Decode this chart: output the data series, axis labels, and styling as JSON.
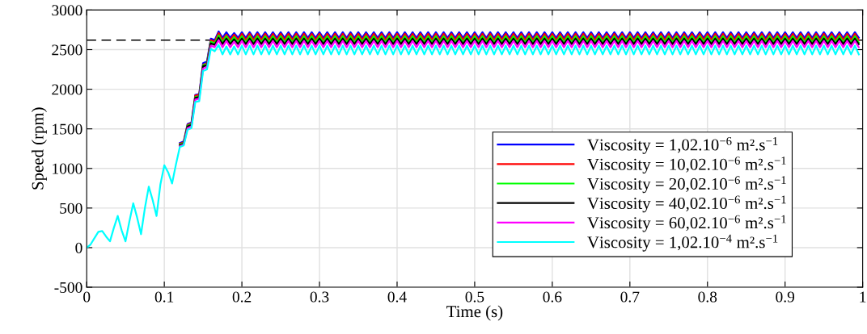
{
  "chart_data": {
    "type": "line",
    "xlabel": "Time (s)",
    "ylabel": "Speed (rpm)",
    "xlim": [
      0,
      1
    ],
    "xticks": [
      0,
      0.1,
      0.2,
      0.3,
      0.4,
      0.5,
      0.6,
      0.7,
      0.8,
      0.9,
      1
    ],
    "ylim": [
      -500,
      3000
    ],
    "yticks": [
      -500,
      0,
      500,
      1000,
      1500,
      2000,
      2500,
      3000
    ],
    "grid": true,
    "legend": "bottom right",
    "line_style": "solid",
    "marker": "none",
    "ref_lines": [
      {
        "axis": "y",
        "value": 2620,
        "color": "#000000",
        "line_style": "dashed"
      }
    ],
    "x": [
      0,
      0.005,
      0.01,
      0.015,
      0.02,
      0.025,
      0.03,
      0.035,
      0.04,
      0.045,
      0.05,
      0.055,
      0.06,
      0.065,
      0.07,
      0.075,
      0.08,
      0.085,
      0.09,
      0.095,
      0.1,
      0.105,
      0.11,
      0.115,
      0.12,
      0.125,
      0.13,
      0.135,
      0.14,
      0.145,
      0.15,
      0.155,
      0.16,
      0.165,
      0.17,
      0.175,
      0.18,
      0.185,
      0.19,
      0.195,
      0.2,
      0.205,
      0.21,
      0.215,
      0.22,
      0.225,
      0.23,
      0.235,
      0.24,
      0.245,
      0.25,
      0.255,
      0.26,
      0.265,
      0.27,
      0.275,
      0.28,
      0.285,
      0.29,
      0.295,
      0.3,
      0.305,
      0.31,
      0.315,
      0.32,
      0.325,
      0.33,
      0.335,
      0.34,
      0.345,
      0.35,
      0.355,
      0.36,
      0.365,
      0.37,
      0.375,
      0.38,
      0.385,
      0.39,
      0.395,
      0.4,
      0.405,
      0.41,
      0.415,
      0.42,
      0.425,
      0.43,
      0.435,
      0.44,
      0.445,
      0.45,
      0.455,
      0.46,
      0.465,
      0.47,
      0.475,
      0.48,
      0.485,
      0.49,
      0.495,
      0.5,
      0.505,
      0.51,
      0.515,
      0.52,
      0.525,
      0.53,
      0.535,
      0.54,
      0.545,
      0.55,
      0.555,
      0.56,
      0.565,
      0.57,
      0.575,
      0.58,
      0.585,
      0.59,
      0.595,
      0.6,
      0.605,
      0.61,
      0.615,
      0.62,
      0.625,
      0.63,
      0.635,
      0.64,
      0.645,
      0.65,
      0.655,
      0.66,
      0.665,
      0.67,
      0.675,
      0.68,
      0.685,
      0.69,
      0.695,
      0.7,
      0.705,
      0.71,
      0.715,
      0.72,
      0.725,
      0.73,
      0.735,
      0.74,
      0.745,
      0.75,
      0.755,
      0.76,
      0.765,
      0.77,
      0.775,
      0.78,
      0.785,
      0.79,
      0.795,
      0.8,
      0.805,
      0.81,
      0.815,
      0.82,
      0.825,
      0.83,
      0.835,
      0.84,
      0.845,
      0.85,
      0.855,
      0.86,
      0.865,
      0.87,
      0.875,
      0.88,
      0.885,
      0.89,
      0.895,
      0.9,
      0.905,
      0.91,
      0.915,
      0.92,
      0.925,
      0.93,
      0.935,
      0.94,
      0.945,
      0.95,
      0.955,
      0.96,
      0.965,
      0.97,
      0.975,
      0.98,
      0.985,
      0.99,
      0.995
    ],
    "series": [
      {
        "name": "Viscosity = 1,02.10$^{−6}$ m².s$^{−1}$",
        "color": "#0000ff",
        "values": [
          null,
          null,
          null,
          null,
          null,
          null,
          null,
          null,
          null,
          null,
          null,
          null,
          null,
          null,
          null,
          null,
          null,
          null,
          null,
          null,
          null,
          null,
          null,
          null,
          1320,
          1340,
          1560,
          1580,
          1930,
          1940,
          2330,
          2350,
          2640,
          2620,
          2730,
          2650,
          2720,
          2650,
          2710,
          2650,
          2720,
          2650,
          2720,
          2650,
          2720,
          2650,
          2720,
          2650,
          2720,
          2650,
          2720,
          2650,
          2720,
          2650,
          2720,
          2650,
          2720,
          2650,
          2720,
          2650,
          2720,
          2650,
          2720,
          2650,
          2720,
          2650,
          2720,
          2650,
          2720,
          2650,
          2720,
          2650,
          2720,
          2650,
          2720,
          2650,
          2720,
          2650,
          2720,
          2650,
          2720,
          2650,
          2720,
          2650,
          2720,
          2650,
          2720,
          2650,
          2720,
          2650,
          2720,
          2650,
          2720,
          2650,
          2720,
          2650,
          2720,
          2650,
          2720,
          2650,
          2720,
          2650,
          2720,
          2650,
          2720,
          2650,
          2720,
          2650,
          2720,
          2650,
          2720,
          2650,
          2720,
          2650,
          2720,
          2650,
          2720,
          2650,
          2720,
          2650,
          2720,
          2650,
          2720,
          2650,
          2720,
          2650,
          2720,
          2650,
          2720,
          2650,
          2720,
          2650,
          2720,
          2650,
          2720,
          2650,
          2720,
          2650,
          2720,
          2650,
          2720,
          2650,
          2720,
          2650,
          2720,
          2650,
          2720,
          2650,
          2720,
          2650,
          2720,
          2650,
          2720,
          2650,
          2720,
          2650,
          2720,
          2650,
          2720,
          2650,
          2720,
          2650,
          2720,
          2650,
          2720,
          2650,
          2720,
          2650,
          2720,
          2650,
          2720,
          2650,
          2720,
          2650,
          2720,
          2650,
          2720,
          2650,
          2720,
          2650,
          2720,
          2650,
          2720,
          2650,
          2720,
          2650,
          2720,
          2650,
          2720,
          2650,
          2720,
          2650,
          2720,
          2650,
          2720,
          2650,
          2720,
          2650,
          2720,
          2650
        ]
      },
      {
        "name": "Viscosity = 10,02.10$^{−6}$ m².s$^{−1}$",
        "color": "#ff0000",
        "values": [
          null,
          null,
          null,
          null,
          null,
          null,
          null,
          null,
          null,
          null,
          null,
          null,
          null,
          null,
          null,
          null,
          null,
          null,
          null,
          null,
          null,
          null,
          null,
          null,
          1310,
          1330,
          1550,
          1570,
          1920,
          1930,
          2310,
          2330,
          2620,
          2600,
          2710,
          2620,
          2690,
          2620,
          2690,
          2620,
          2700,
          2620,
          2700,
          2620,
          2700,
          2620,
          2700,
          2620,
          2700,
          2620,
          2700,
          2620,
          2700,
          2620,
          2700,
          2620,
          2700,
          2620,
          2700,
          2620,
          2700,
          2620,
          2700,
          2620,
          2700,
          2620,
          2700,
          2620,
          2700,
          2620,
          2700,
          2620,
          2700,
          2620,
          2700,
          2620,
          2700,
          2620,
          2700,
          2620,
          2700,
          2620,
          2700,
          2620,
          2700,
          2620,
          2700,
          2620,
          2700,
          2620,
          2700,
          2620,
          2700,
          2620,
          2700,
          2620,
          2700,
          2620,
          2700,
          2620,
          2700,
          2620,
          2700,
          2620,
          2700,
          2620,
          2700,
          2620,
          2700,
          2620,
          2700,
          2620,
          2700,
          2620,
          2700,
          2620,
          2700,
          2620,
          2700,
          2620,
          2700,
          2620,
          2700,
          2620,
          2700,
          2620,
          2700,
          2620,
          2700,
          2620,
          2700,
          2620,
          2700,
          2620,
          2700,
          2620,
          2700,
          2620,
          2700,
          2620,
          2700,
          2620,
          2700,
          2620,
          2700,
          2620,
          2700,
          2620,
          2700,
          2620,
          2700,
          2620,
          2700,
          2620,
          2700,
          2620,
          2700,
          2620,
          2700,
          2620,
          2700,
          2620,
          2700,
          2620,
          2700,
          2620,
          2700,
          2620,
          2700,
          2620,
          2700,
          2620,
          2700,
          2620,
          2700,
          2620,
          2700,
          2620,
          2700,
          2620,
          2700,
          2620,
          2700,
          2620,
          2700,
          2620,
          2700,
          2620,
          2700,
          2620,
          2700,
          2620,
          2700,
          2620,
          2700,
          2620,
          2700,
          2620,
          2700,
          2620
        ]
      },
      {
        "name": "Viscosity = 20,02.10$^{−6}$ m².s$^{−1}$",
        "color": "#00ff00",
        "values": [
          null,
          null,
          null,
          null,
          null,
          null,
          null,
          null,
          null,
          null,
          null,
          null,
          null,
          null,
          null,
          null,
          null,
          null,
          null,
          null,
          null,
          null,
          null,
          null,
          1300,
          1320,
          1540,
          1560,
          1900,
          1910,
          2300,
          2320,
          2600,
          2580,
          2680,
          2590,
          2670,
          2590,
          2660,
          2590,
          2670,
          2590,
          2670,
          2590,
          2670,
          2590,
          2670,
          2590,
          2670,
          2590,
          2670,
          2590,
          2670,
          2590,
          2670,
          2590,
          2670,
          2590,
          2670,
          2590,
          2670,
          2590,
          2670,
          2590,
          2670,
          2590,
          2670,
          2590,
          2670,
          2590,
          2670,
          2590,
          2670,
          2590,
          2670,
          2590,
          2670,
          2590,
          2670,
          2590,
          2670,
          2590,
          2670,
          2590,
          2670,
          2590,
          2670,
          2590,
          2670,
          2590,
          2670,
          2590,
          2670,
          2590,
          2670,
          2590,
          2670,
          2590,
          2670,
          2590,
          2670,
          2590,
          2670,
          2590,
          2670,
          2590,
          2670,
          2590,
          2670,
          2590,
          2670,
          2590,
          2670,
          2590,
          2670,
          2590,
          2670,
          2590,
          2670,
          2590,
          2670,
          2590,
          2670,
          2590,
          2670,
          2590,
          2670,
          2590,
          2670,
          2590,
          2670,
          2590,
          2670,
          2590,
          2670,
          2590,
          2670,
          2590,
          2670,
          2590,
          2670,
          2590,
          2670,
          2590,
          2670,
          2590,
          2670,
          2590,
          2670,
          2590,
          2670,
          2590,
          2670,
          2590,
          2670,
          2590,
          2670,
          2590,
          2670,
          2590,
          2670,
          2590,
          2670,
          2590,
          2670,
          2590,
          2670,
          2590,
          2670,
          2590,
          2670,
          2590,
          2670,
          2590,
          2670,
          2590,
          2670,
          2590,
          2670,
          2590,
          2670,
          2590,
          2670,
          2590,
          2670,
          2590,
          2670,
          2590,
          2670,
          2590,
          2670,
          2590,
          2670,
          2590,
          2670,
          2590,
          2670,
          2590,
          2670,
          2590
        ]
      },
      {
        "name": "Viscosity = 40,02.10$^{−6}$ m².s$^{−1}$",
        "color": "#000000",
        "values": [
          null,
          null,
          null,
          null,
          null,
          null,
          null,
          null,
          null,
          null,
          null,
          null,
          null,
          null,
          null,
          null,
          null,
          null,
          null,
          null,
          null,
          null,
          null,
          null,
          1290,
          1310,
          1530,
          1550,
          1890,
          1900,
          2290,
          2300,
          2580,
          2560,
          2650,
          2570,
          2640,
          2570,
          2630,
          2570,
          2640,
          2570,
          2640,
          2570,
          2640,
          2570,
          2640,
          2570,
          2640,
          2570,
          2640,
          2570,
          2640,
          2570,
          2640,
          2570,
          2640,
          2570,
          2640,
          2570,
          2640,
          2570,
          2640,
          2570,
          2640,
          2570,
          2640,
          2570,
          2640,
          2570,
          2640,
          2570,
          2640,
          2570,
          2640,
          2570,
          2640,
          2570,
          2640,
          2570,
          2640,
          2570,
          2640,
          2570,
          2640,
          2570,
          2640,
          2570,
          2640,
          2570,
          2640,
          2570,
          2640,
          2570,
          2640,
          2570,
          2640,
          2570,
          2640,
          2570,
          2640,
          2570,
          2640,
          2570,
          2640,
          2570,
          2640,
          2570,
          2640,
          2570,
          2640,
          2570,
          2640,
          2570,
          2640,
          2570,
          2640,
          2570,
          2640,
          2570,
          2640,
          2570,
          2640,
          2570,
          2640,
          2570,
          2640,
          2570,
          2640,
          2570,
          2640,
          2570,
          2640,
          2570,
          2640,
          2570,
          2640,
          2570,
          2640,
          2570,
          2640,
          2570,
          2640,
          2570,
          2640,
          2570,
          2640,
          2570,
          2640,
          2570,
          2640,
          2570,
          2640,
          2570,
          2640,
          2570,
          2640,
          2570,
          2640,
          2570,
          2640,
          2570,
          2640,
          2570,
          2640,
          2570,
          2640,
          2570,
          2640,
          2570,
          2640,
          2570,
          2640,
          2570,
          2640,
          2570,
          2640,
          2570,
          2640,
          2570,
          2640,
          2570,
          2640,
          2570,
          2640,
          2570,
          2640,
          2570,
          2640,
          2570,
          2640,
          2570,
          2640,
          2570,
          2640,
          2570,
          2640,
          2570,
          2640,
          2570
        ]
      },
      {
        "name": "Viscosity = 60,02.10$^{−6}$ m².s$^{−1}$",
        "color": "#ff00ff",
        "values": [
          null,
          null,
          null,
          null,
          null,
          null,
          null,
          null,
          null,
          null,
          null,
          null,
          null,
          null,
          null,
          null,
          null,
          null,
          null,
          null,
          null,
          null,
          null,
          null,
          1280,
          1300,
          1510,
          1530,
          1870,
          1880,
          2260,
          2280,
          2550,
          2530,
          2620,
          2530,
          2610,
          2530,
          2600,
          2530,
          2610,
          2530,
          2610,
          2530,
          2610,
          2530,
          2610,
          2530,
          2610,
          2530,
          2610,
          2530,
          2610,
          2530,
          2610,
          2530,
          2610,
          2530,
          2610,
          2530,
          2610,
          2530,
          2610,
          2530,
          2610,
          2530,
          2610,
          2530,
          2610,
          2530,
          2610,
          2530,
          2610,
          2530,
          2610,
          2530,
          2610,
          2530,
          2610,
          2530,
          2610,
          2530,
          2610,
          2530,
          2610,
          2530,
          2610,
          2530,
          2610,
          2530,
          2610,
          2530,
          2610,
          2530,
          2610,
          2530,
          2610,
          2530,
          2610,
          2530,
          2610,
          2530,
          2610,
          2530,
          2610,
          2530,
          2610,
          2530,
          2610,
          2530,
          2610,
          2530,
          2610,
          2530,
          2610,
          2530,
          2610,
          2530,
          2610,
          2530,
          2610,
          2530,
          2610,
          2530,
          2610,
          2530,
          2610,
          2530,
          2610,
          2530,
          2610,
          2530,
          2610,
          2530,
          2610,
          2530,
          2610,
          2530,
          2610,
          2530,
          2610,
          2530,
          2610,
          2530,
          2610,
          2530,
          2610,
          2530,
          2610,
          2530,
          2610,
          2530,
          2610,
          2530,
          2610,
          2530,
          2610,
          2530,
          2610,
          2530,
          2610,
          2530,
          2610,
          2530,
          2610,
          2530,
          2610,
          2530,
          2610,
          2530,
          2610,
          2530,
          2610,
          2530,
          2610,
          2530,
          2610,
          2530,
          2610,
          2530,
          2610,
          2530,
          2610,
          2530,
          2610,
          2530,
          2610,
          2530,
          2610,
          2530,
          2610,
          2530,
          2610,
          2530,
          2610,
          2530,
          2610,
          2530,
          2610,
          2530
        ]
      },
      {
        "name": "Viscosity = 1,02.10$^{−4}$ m².s$^{−1}$",
        "color": "#00ffff",
        "values": [
          0,
          40,
          120,
          200,
          210,
          140,
          80,
          250,
          400,
          220,
          80,
          330,
          560,
          380,
          170,
          500,
          770,
          600,
          400,
          800,
          1040,
          950,
          810,
          1050,
          1270,
          1290,
          1490,
          1510,
          1840,
          1850,
          2230,
          2250,
          2510,
          2480,
          2560,
          2440,
          2540,
          2440,
          2540,
          2440,
          2550,
          2440,
          2550,
          2440,
          2550,
          2440,
          2550,
          2440,
          2550,
          2440,
          2550,
          2440,
          2550,
          2440,
          2550,
          2440,
          2550,
          2440,
          2550,
          2440,
          2550,
          2440,
          2550,
          2440,
          2550,
          2440,
          2550,
          2440,
          2550,
          2440,
          2550,
          2440,
          2550,
          2440,
          2550,
          2440,
          2550,
          2440,
          2550,
          2440,
          2550,
          2440,
          2550,
          2440,
          2550,
          2440,
          2550,
          2440,
          2550,
          2440,
          2550,
          2440,
          2550,
          2440,
          2550,
          2440,
          2550,
          2440,
          2550,
          2440,
          2550,
          2440,
          2550,
          2440,
          2550,
          2440,
          2550,
          2440,
          2550,
          2440,
          2550,
          2440,
          2550,
          2440,
          2550,
          2440,
          2550,
          2440,
          2550,
          2440,
          2550,
          2440,
          2550,
          2440,
          2550,
          2440,
          2550,
          2440,
          2550,
          2440,
          2550,
          2440,
          2550,
          2440,
          2550,
          2440,
          2550,
          2440,
          2550,
          2440,
          2550,
          2440,
          2550,
          2440,
          2550,
          2440,
          2550,
          2440,
          2550,
          2440,
          2550,
          2440,
          2550,
          2440,
          2550,
          2440,
          2550,
          2440,
          2550,
          2440,
          2550,
          2440,
          2550,
          2440,
          2550,
          2440,
          2550,
          2440,
          2550,
          2440,
          2550,
          2440,
          2550,
          2440,
          2550,
          2440,
          2550,
          2440,
          2550,
          2440,
          2550,
          2440,
          2550,
          2440,
          2550,
          2440,
          2550,
          2440,
          2550,
          2440,
          2550,
          2440,
          2550,
          2440,
          2550,
          2440,
          2550,
          2440,
          2550,
          2440
        ]
      }
    ]
  }
}
